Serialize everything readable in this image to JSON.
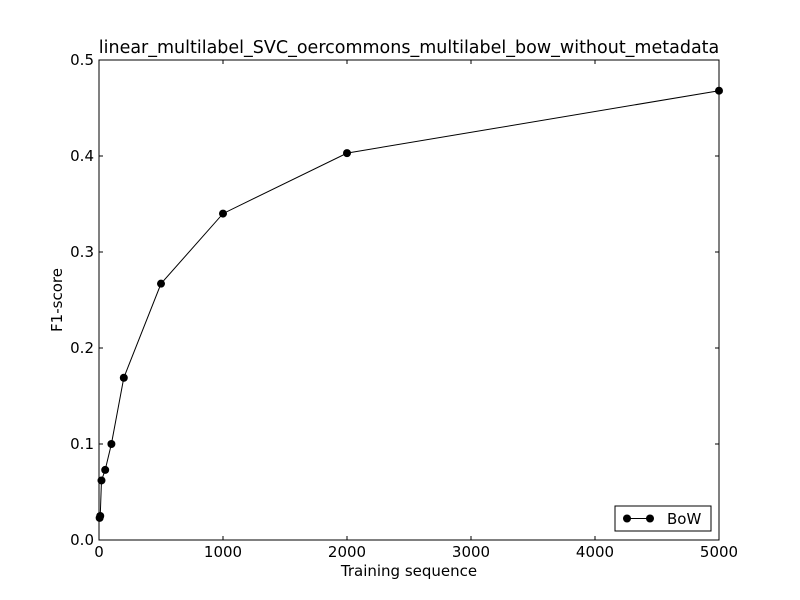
{
  "chart_data": {
    "type": "line",
    "title": "linear_multilabel_SVC_oercommons_multilabel_bow_without_metadata",
    "xlabel": "Training sequence",
    "ylabel": "F1-score",
    "xlim": [
      0,
      5000
    ],
    "ylim": [
      0.0,
      0.5
    ],
    "xticks": [
      0,
      1000,
      2000,
      3000,
      4000,
      5000
    ],
    "xtick_labels": [
      "0",
      "1000",
      "2000",
      "3000",
      "4000",
      "5000"
    ],
    "yticks": [
      0.0,
      0.1,
      0.2,
      0.3,
      0.4,
      0.5
    ],
    "ytick_labels": [
      "0.0",
      "0.1",
      "0.2",
      "0.3",
      "0.4",
      "0.5"
    ],
    "grid": false,
    "legend_position": "lower-right",
    "series": [
      {
        "name": "BoW",
        "color": "#000000",
        "marker": "circle",
        "x": [
          5,
          10,
          20,
          50,
          100,
          200,
          500,
          1000,
          2000,
          5000
        ],
        "y": [
          0.023,
          0.025,
          0.062,
          0.073,
          0.1,
          0.169,
          0.267,
          0.34,
          0.403,
          0.468
        ]
      }
    ]
  }
}
